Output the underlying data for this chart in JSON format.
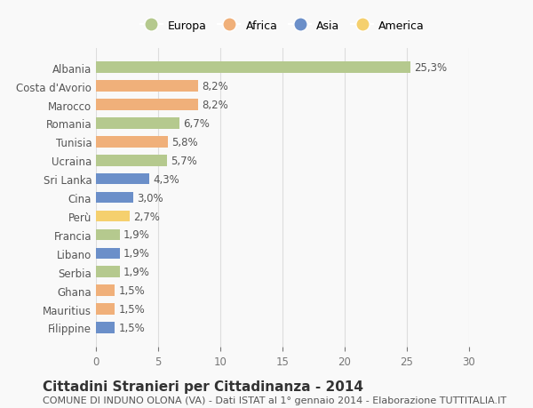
{
  "categories": [
    "Albania",
    "Costa d'Avorio",
    "Marocco",
    "Romania",
    "Tunisia",
    "Ucraina",
    "Sri Lanka",
    "Cina",
    "Perù",
    "Francia",
    "Libano",
    "Serbia",
    "Ghana",
    "Mauritius",
    "Filippine"
  ],
  "values": [
    25.3,
    8.2,
    8.2,
    6.7,
    5.8,
    5.7,
    4.3,
    3.0,
    2.7,
    1.9,
    1.9,
    1.9,
    1.5,
    1.5,
    1.5
  ],
  "labels": [
    "25,3%",
    "8,2%",
    "8,2%",
    "6,7%",
    "5,8%",
    "5,7%",
    "4,3%",
    "3,0%",
    "2,7%",
    "1,9%",
    "1,9%",
    "1,9%",
    "1,5%",
    "1,5%",
    "1,5%"
  ],
  "continents": [
    "Europa",
    "Africa",
    "Africa",
    "Europa",
    "Africa",
    "Europa",
    "Asia",
    "Asia",
    "America",
    "Europa",
    "Asia",
    "Europa",
    "Africa",
    "Africa",
    "Asia"
  ],
  "continent_colors": {
    "Europa": "#b5c98e",
    "Africa": "#f0b07a",
    "Asia": "#6b8fc9",
    "America": "#f5d06e"
  },
  "legend_order": [
    "Europa",
    "Africa",
    "Asia",
    "America"
  ],
  "title": "Cittadini Stranieri per Cittadinanza - 2014",
  "subtitle": "COMUNE DI INDUNO OLONA (VA) - Dati ISTAT al 1° gennaio 2014 - Elaborazione TUTTITALIA.IT",
  "xlim": [
    0,
    30
  ],
  "xticks": [
    0,
    5,
    10,
    15,
    20,
    25,
    30
  ],
  "background_color": "#f9f9f9",
  "grid_color": "#dddddd",
  "bar_height": 0.6,
  "title_fontsize": 11,
  "subtitle_fontsize": 8,
  "label_fontsize": 8.5,
  "tick_fontsize": 8.5,
  "legend_fontsize": 9
}
